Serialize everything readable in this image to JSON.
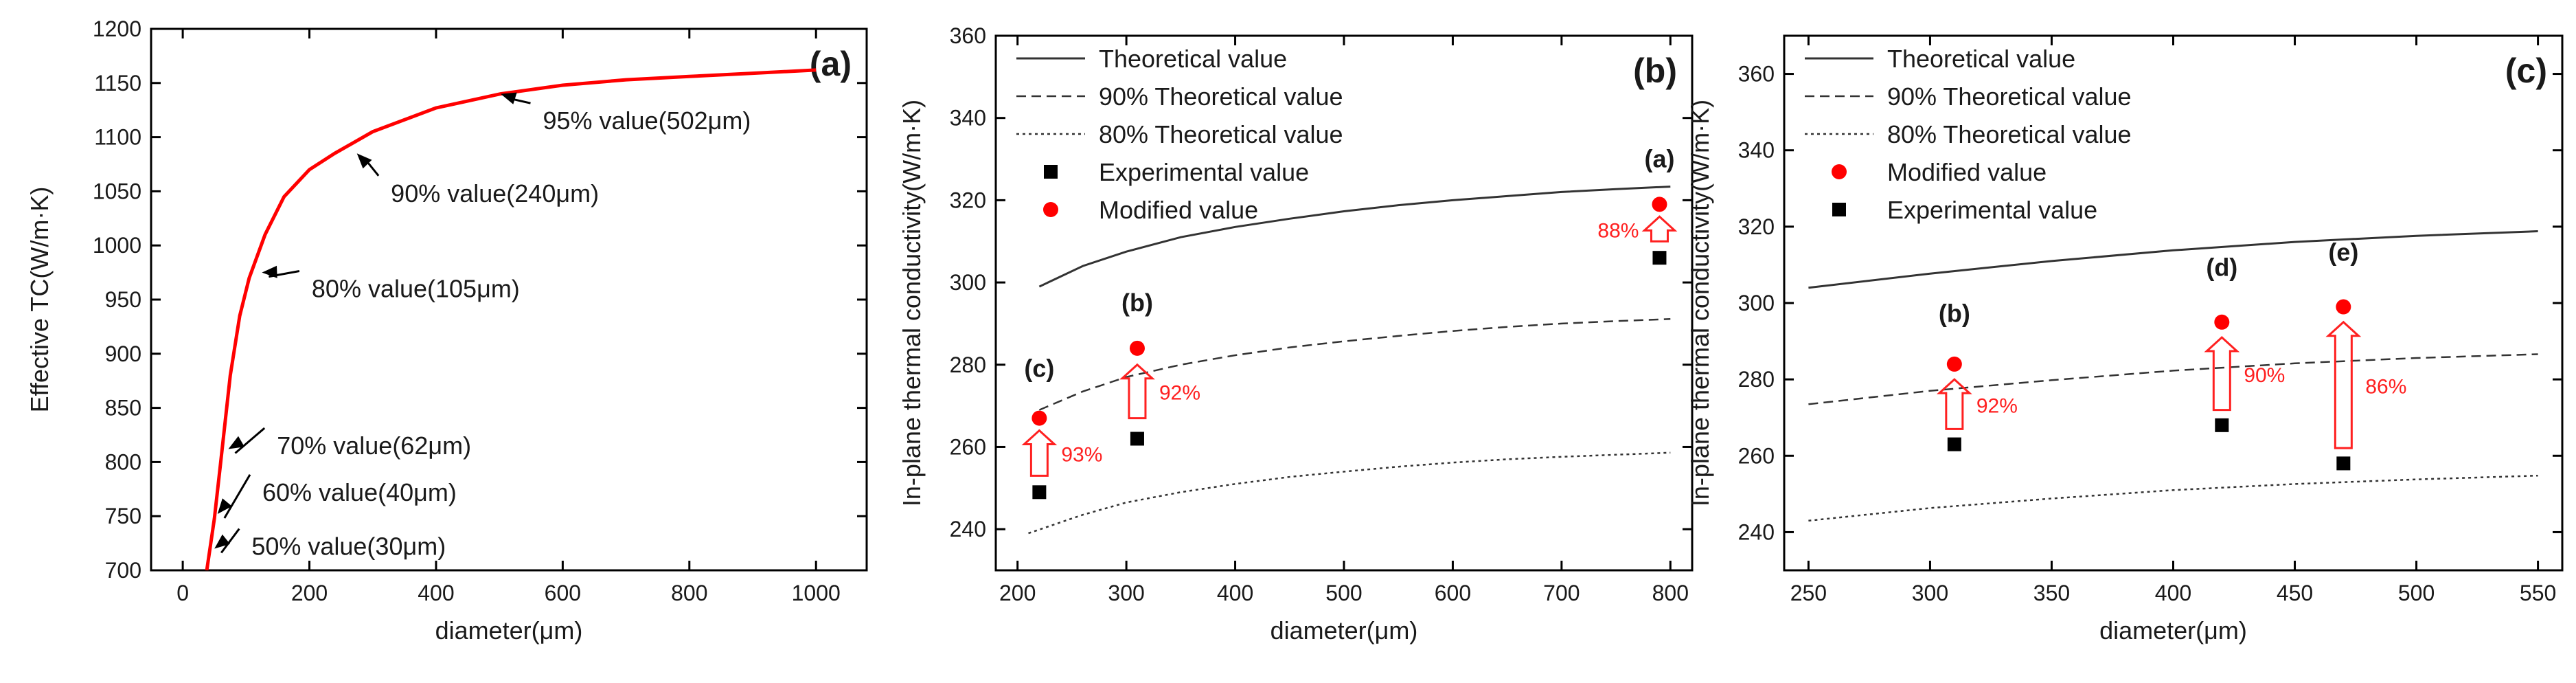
{
  "colors": {
    "axis": "#000000",
    "accent": "#ff0000",
    "text": "#1a1a1a",
    "annotation": "#ff2020"
  },
  "chart_data": [
    {
      "panel": "a",
      "type": "line",
      "label": "(a)",
      "xlabel": "diameter(μm)",
      "ylabel": "Effective TC(W/m·K)",
      "xlim": [
        -50,
        1080
      ],
      "ylim": [
        700,
        1200
      ],
      "xticks": [
        0,
        200,
        400,
        600,
        800,
        1000
      ],
      "yticks": [
        700,
        750,
        800,
        850,
        900,
        950,
        1000,
        1050,
        1100,
        1150,
        1200
      ],
      "series": [
        {
          "name": "Effective TC",
          "color": "#ff0000",
          "x": [
            38,
            45,
            50,
            60,
            75,
            90,
            105,
            130,
            160,
            200,
            240,
            300,
            400,
            502,
            600,
            700,
            800,
            900,
            1000
          ],
          "y": [
            700,
            728,
            748,
            800,
            880,
            935,
            970,
            1010,
            1045,
            1070,
            1085,
            1105,
            1127,
            1140,
            1148,
            1153,
            1156,
            1159,
            1162
          ]
        }
      ],
      "annotations": [
        {
          "text": "95% value(502μm)",
          "x": 502,
          "y": 1140,
          "tx": 560,
          "ty": 1125
        },
        {
          "text": "90% value(240μm)",
          "x": 275,
          "y": 1085,
          "tx": 320,
          "ty": 1058
        },
        {
          "text": "80% value(105μm)",
          "x": 125,
          "y": 975,
          "tx": 195,
          "ty": 970
        },
        {
          "text": "70% value(62μm)",
          "x": 72,
          "y": 812,
          "tx": 140,
          "ty": 825
        },
        {
          "text": "60% value(40μm)",
          "x": 55,
          "y": 752,
          "tx": 117,
          "ty": 782
        },
        {
          "text": "50% value(30μm)",
          "x": 50,
          "y": 720,
          "tx": 100,
          "ty": 732
        }
      ]
    },
    {
      "panel": "b",
      "type": "line",
      "label": "(b)",
      "xlabel": "diameter(μm)",
      "ylabel": "In-plane thermal conductivity(W/m·K)",
      "xlim": [
        180,
        820
      ],
      "ylim": [
        230,
        360
      ],
      "xticks": [
        200,
        300,
        400,
        500,
        600,
        700,
        800
      ],
      "yticks": [
        240,
        260,
        280,
        300,
        320,
        340,
        360
      ],
      "series": [
        {
          "name": "Theoretical value",
          "style": "solid",
          "x": [
            220,
            260,
            300,
            350,
            400,
            450,
            500,
            550,
            600,
            650,
            700,
            750,
            800
          ],
          "y": [
            299,
            304,
            307.5,
            311,
            313.5,
            315.5,
            317.3,
            318.8,
            320,
            321,
            322,
            322.7,
            323.3
          ]
        },
        {
          "name": "90% Theoretical value",
          "style": "dashed",
          "x": [
            220,
            260,
            300,
            350,
            400,
            450,
            500,
            550,
            600,
            650,
            700,
            750,
            800
          ],
          "y": [
            269,
            273.5,
            277,
            280,
            282.3,
            284.2,
            285.7,
            287,
            288.2,
            289.2,
            290,
            290.6,
            291.1
          ]
        },
        {
          "name": "80% Theoretical value",
          "style": "dotted",
          "x": [
            210,
            260,
            300,
            350,
            400,
            450,
            500,
            550,
            600,
            650,
            700,
            750,
            800
          ],
          "y": [
            239,
            243.5,
            246.5,
            249,
            251,
            252.7,
            254,
            255.2,
            256.2,
            257,
            257.6,
            258.1,
            258.6
          ]
        },
        {
          "name": "Experimental value",
          "marker": "square",
          "x": [
            220,
            310,
            790
          ],
          "y": [
            249,
            262,
            306
          ]
        },
        {
          "name": "Modified value",
          "marker": "circle",
          "x": [
            220,
            310,
            790
          ],
          "y": [
            267,
            284,
            319
          ]
        }
      ],
      "point_labels": [
        {
          "text": "(c)",
          "x": 220,
          "y": 276
        },
        {
          "text": "(b)",
          "x": 310,
          "y": 292
        },
        {
          "text": "(a)",
          "x": 790,
          "y": 327
        }
      ],
      "percent_labels": [
        {
          "text": "93%",
          "x": 220,
          "from": 253,
          "to": 264
        },
        {
          "text": "92%",
          "x": 310,
          "from": 267,
          "to": 280
        },
        {
          "text": "88%",
          "x": 790,
          "from": 310,
          "to": 316
        }
      ]
    },
    {
      "panel": "c",
      "type": "line",
      "label": "(c)",
      "xlabel": "diameter(μm)",
      "ylabel": "In-plane thermal conductivity(W/m·K)",
      "xlim": [
        240,
        560
      ],
      "ylim": [
        230,
        370
      ],
      "xticks": [
        250,
        300,
        350,
        400,
        450,
        500,
        550
      ],
      "yticks": [
        240,
        260,
        280,
        300,
        320,
        340,
        360
      ],
      "series": [
        {
          "name": "Theoretical value",
          "style": "solid",
          "x": [
            250,
            300,
            350,
            400,
            450,
            500,
            550
          ],
          "y": [
            304,
            307.7,
            311,
            313.8,
            316,
            317.6,
            318.8
          ]
        },
        {
          "name": "90% Theoretical value",
          "style": "dashed",
          "x": [
            250,
            300,
            350,
            400,
            450,
            500,
            550
          ],
          "y": [
            273.5,
            277,
            279.8,
            282.3,
            284.2,
            285.6,
            286.6
          ]
        },
        {
          "name": "80% Theoretical value",
          "style": "dotted",
          "x": [
            250,
            300,
            350,
            400,
            450,
            500,
            550
          ],
          "y": [
            243,
            246.3,
            248.8,
            251,
            252.6,
            253.8,
            254.8
          ]
        },
        {
          "name": "Modified value",
          "marker": "circle",
          "x": [
            310,
            420,
            470
          ],
          "y": [
            284,
            295,
            299
          ]
        },
        {
          "name": "Experimental value",
          "marker": "square",
          "x": [
            310,
            420,
            470
          ],
          "y": [
            263,
            268,
            258
          ]
        }
      ],
      "point_labels": [
        {
          "text": "(b)",
          "x": 310,
          "y": 294
        },
        {
          "text": "(d)",
          "x": 420,
          "y": 306
        },
        {
          "text": "(e)",
          "x": 470,
          "y": 310
        }
      ],
      "percent_labels": [
        {
          "text": "92%",
          "x": 310,
          "from": 267,
          "to": 280
        },
        {
          "text": "90%",
          "x": 420,
          "from": 272,
          "to": 291
        },
        {
          "text": "86%",
          "x": 470,
          "from": 262,
          "to": 295
        }
      ]
    }
  ]
}
